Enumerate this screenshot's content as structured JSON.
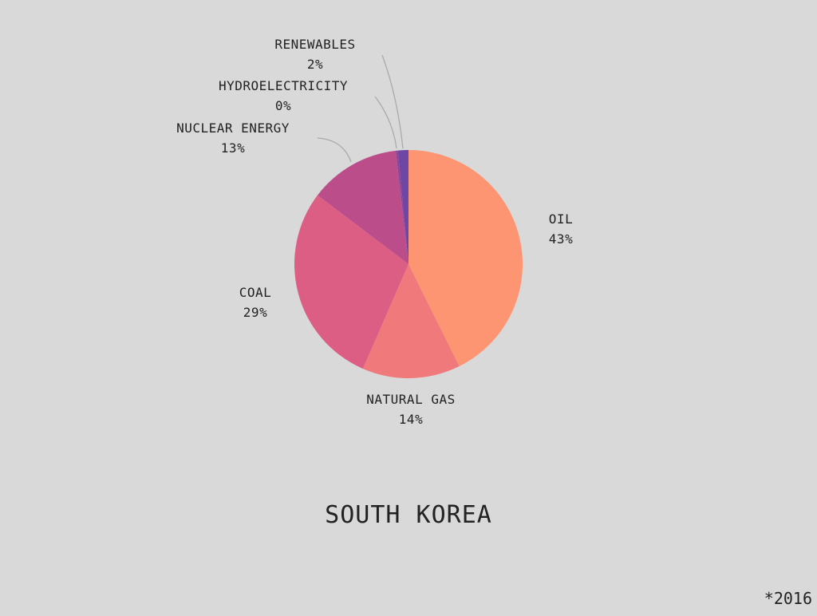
{
  "chart_data": {
    "type": "pie",
    "title": "SOUTH KOREA",
    "footnote": "*2016",
    "slices": [
      {
        "label": "OIL",
        "value": 43,
        "value_text": "43%",
        "color": "#fd9472"
      },
      {
        "label": "NATURAL GAS",
        "value": 14,
        "value_text": "14%",
        "color": "#f0797c"
      },
      {
        "label": "COAL",
        "value": 29,
        "value_text": "29%",
        "color": "#dc5e85"
      },
      {
        "label": "NUCLEAR ENERGY",
        "value": 13,
        "value_text": "13%",
        "color": "#bb4d8b"
      },
      {
        "label": "HYDROELECTRICITY",
        "value": 0.3,
        "value_text": "0%",
        "color": "#8e4499"
      },
      {
        "label": "RENEWABLES",
        "value": 1.5,
        "value_text": "2%",
        "color": "#6e46a4"
      }
    ]
  }
}
